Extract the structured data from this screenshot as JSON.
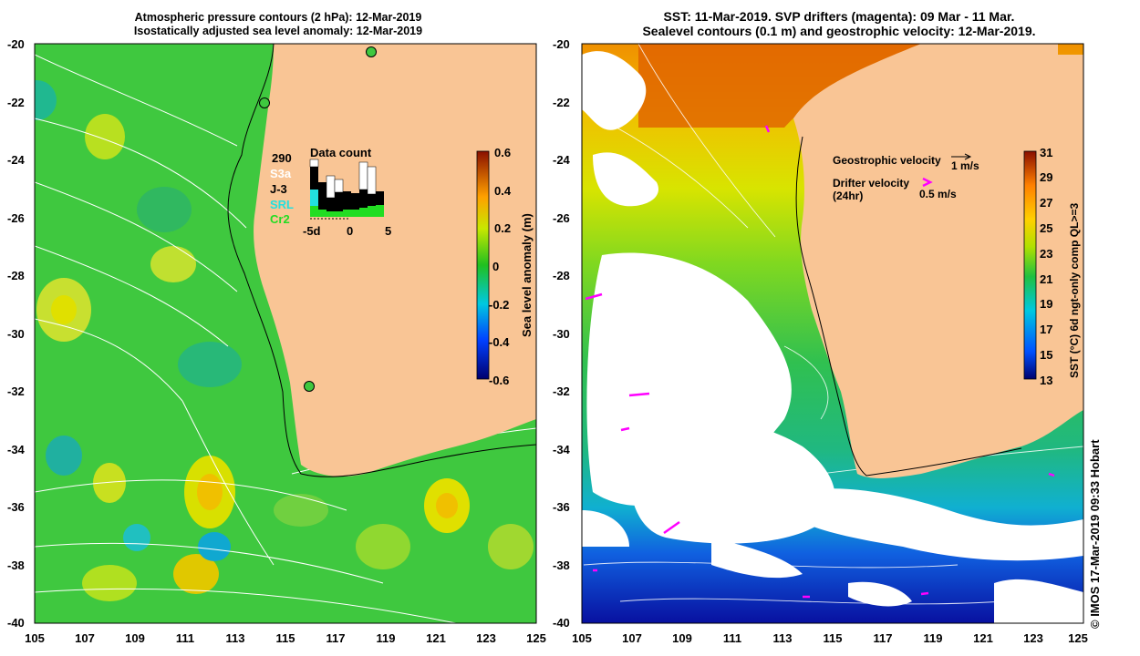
{
  "left_panel": {
    "title_line1": "Atmospheric pressure contours (2 hPa): 12-Mar-2019",
    "title_line2": "Isostatically adjusted sea level anomaly: 12-Mar-2019",
    "y_ticks": [
      "-20",
      "-22",
      "-24",
      "-26",
      "-28",
      "-30",
      "-32",
      "-34",
      "-36",
      "-38",
      "-40"
    ],
    "x_ticks": [
      "105",
      "107",
      "109",
      "111",
      "113",
      "115",
      "117",
      "119",
      "121",
      "123",
      "125"
    ],
    "data_count": {
      "total": "290",
      "title": "Data count",
      "satellites": [
        {
          "name": "S3a",
          "color": "#ffffff"
        },
        {
          "name": "J-3",
          "color": "#000000"
        },
        {
          "name": "SRL",
          "color": "#22e0e0"
        },
        {
          "name": "Cr2",
          "color": "#22dd22"
        }
      ],
      "x_ticks": [
        "-5d",
        "0",
        "5"
      ]
    },
    "colorbar": {
      "label": "Sea level anomaly (m)",
      "ticks": [
        "0.6",
        "0.4",
        "0.2",
        "0",
        "-0.2",
        "-0.4",
        "-0.6"
      ]
    }
  },
  "right_panel": {
    "title_line1": "SST: 11-Mar-2019. SVP drifters (magenta): 09 Mar - 11 Mar.",
    "title_line2": "Sealevel contours (0.1 m) and geostrophic velocity: 12-Mar-2019.",
    "y_ticks": [
      "-20",
      "-22",
      "-24",
      "-26",
      "-28",
      "-30",
      "-32",
      "-34",
      "-36",
      "-38",
      "-40"
    ],
    "x_ticks": [
      "105",
      "107",
      "109",
      "111",
      "113",
      "115",
      "117",
      "119",
      "121",
      "123",
      "125"
    ],
    "legend": {
      "geo_label": "Geostrophic velocity",
      "geo_scale": "1 m/s",
      "drifter_label": "Drifter velocity",
      "drifter_sub": "(24hr)",
      "drifter_scale": "0.5 m/s"
    },
    "colorbar": {
      "label": "SST (°C) 6d ngt-only comp QL>=3",
      "ticks": [
        "31",
        "29",
        "27",
        "25",
        "23",
        "21",
        "19",
        "17",
        "15",
        "13"
      ]
    }
  },
  "credit": "© IMOS 17-Mar-2019 09:33 Hobart",
  "colors": {
    "land": "#f9c595",
    "ocean_green": "#3fc83f"
  }
}
